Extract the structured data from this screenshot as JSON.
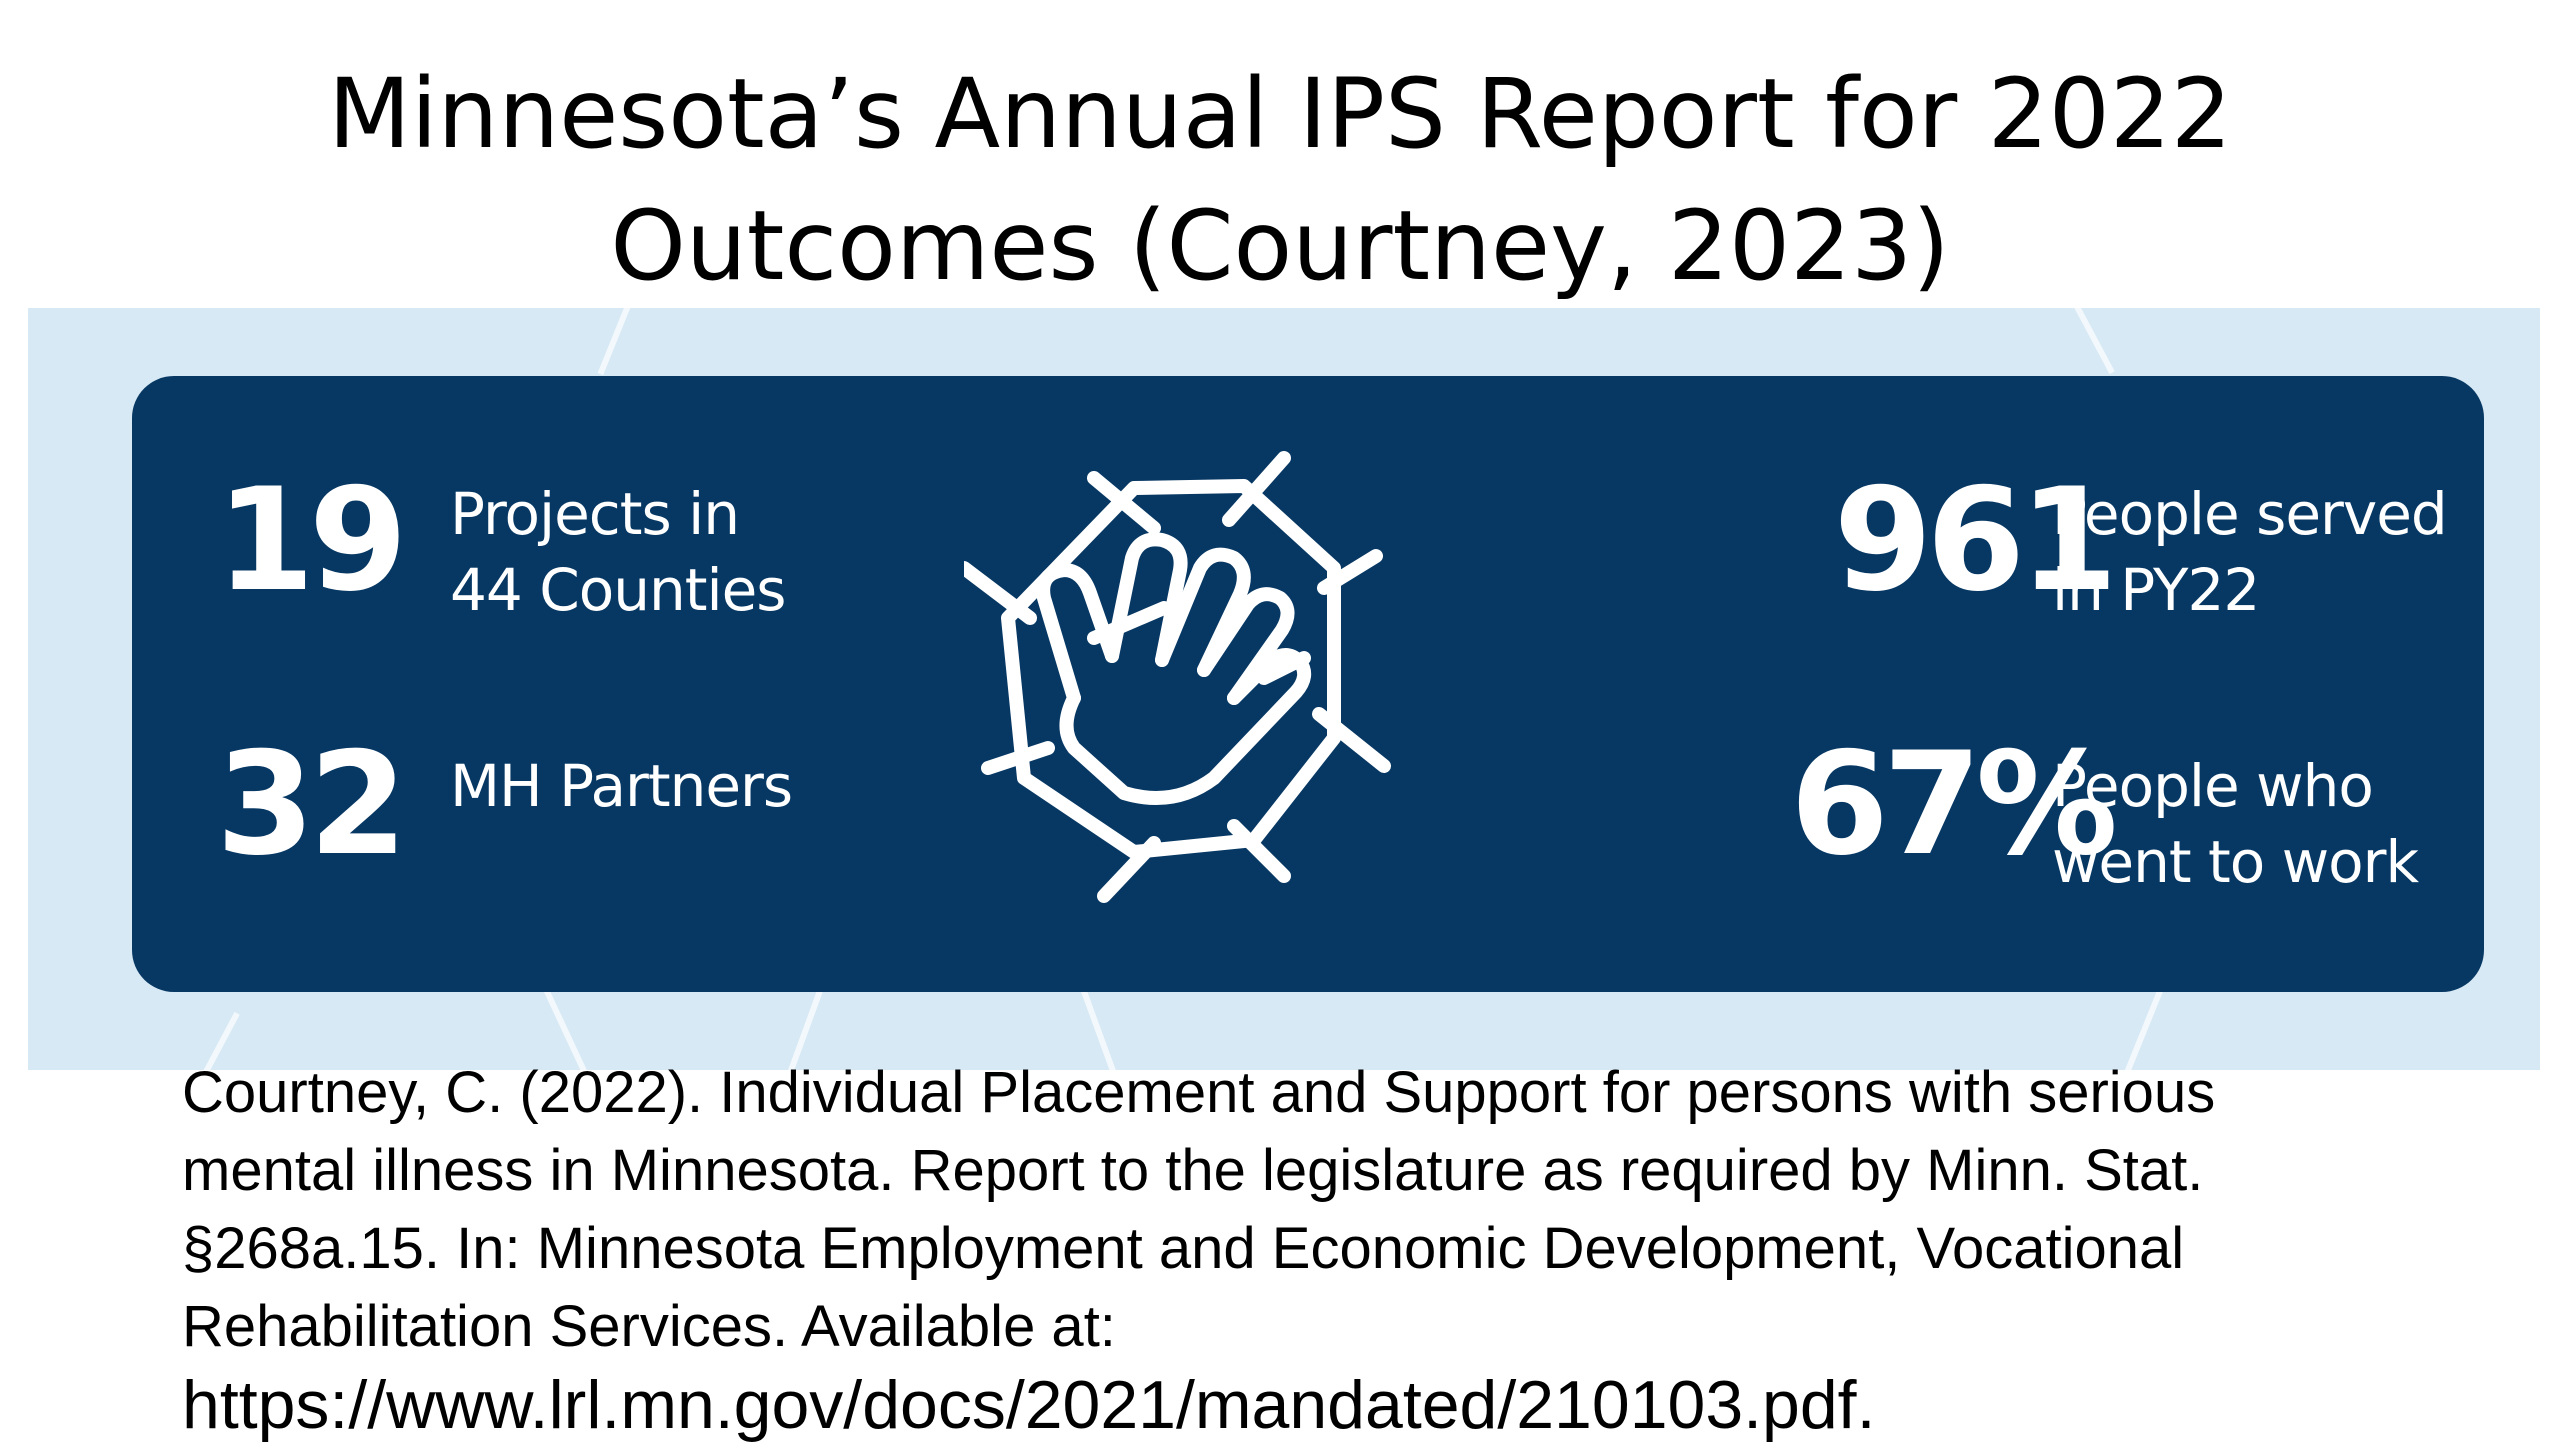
{
  "title": {
    "line1": "Minnesota’s Annual IPS Report for 2022",
    "line2": "Outcomes (Courtney, 2023)"
  },
  "infographic": {
    "icon": "hands-stacked-teamwork-icon",
    "colors": {
      "panel": "#073864",
      "background": "#d6e9f4",
      "text": "#ffffff"
    },
    "stats": [
      {
        "value": "19",
        "label_line1": "Projects in",
        "label_line2": "44 Counties"
      },
      {
        "value": "32",
        "label_line1": "MH Partners",
        "label_line2": ""
      },
      {
        "value": "961",
        "label_line1": "People served",
        "label_line2": "in PY22"
      },
      {
        "value": "67%",
        "label_line1": "People who",
        "label_line2": "went to work"
      }
    ]
  },
  "citation": {
    "line1": "Courtney, C. (2022). Individual Placement and Support for persons with serious",
    "line2": "mental illness in Minnesota.  Report to the legislature as required by Minn. Stat.",
    "line3": "§268a.15. In: Minnesota Employment and Economic Development, Vocational",
    "line4": "Rehabilitation Services.  Available at:",
    "url": "https://www.lrl.mn.gov/docs/2021/mandated/210103.pdf."
  }
}
